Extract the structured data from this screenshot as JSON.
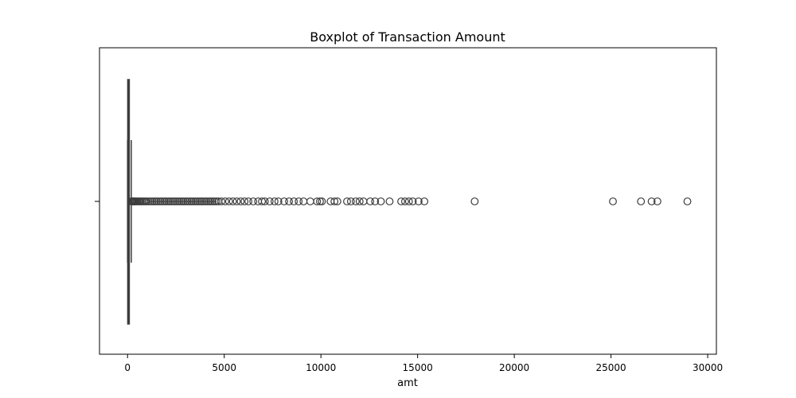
{
  "chart_data": {
    "type": "boxplot",
    "title": "Boxplot of Transaction Amount",
    "xlabel": "amt",
    "ylabel": "",
    "xlim": [
      -1450,
      30450
    ],
    "xticks": [
      0,
      5000,
      10000,
      15000,
      20000,
      25000,
      30000
    ],
    "xtick_labels": [
      "0",
      "5000",
      "10000",
      "15000",
      "20000",
      "25000",
      "30000"
    ],
    "grid": false,
    "orientation": "horizontal",
    "stats": {
      "whisker_low": 1,
      "q1": 9,
      "median": 47,
      "q3": 83,
      "whisker_high": 194
    },
    "outliers": [
      200,
      230,
      260,
      290,
      320,
      360,
      400,
      450,
      500,
      560,
      620,
      690,
      760,
      840,
      920,
      1000,
      1100,
      1200,
      1300,
      1400,
      1500,
      1600,
      1700,
      1800,
      1900,
      2000,
      2100,
      2200,
      2300,
      2400,
      2500,
      2600,
      2700,
      2800,
      2900,
      3000,
      3100,
      3200,
      3300,
      3400,
      3500,
      3600,
      3700,
      3800,
      3900,
      4000,
      4100,
      4200,
      4300,
      4400,
      4500,
      4600,
      4700,
      4850,
      5050,
      5250,
      5450,
      5650,
      5850,
      6050,
      6250,
      6500,
      6750,
      6950,
      7100,
      7350,
      7600,
      7800,
      8100,
      8350,
      8600,
      8850,
      9100,
      9450,
      9800,
      9950,
      10050,
      10500,
      10700,
      10850,
      11350,
      11550,
      11800,
      12000,
      12200,
      12550,
      12800,
      13100,
      13550,
      14150,
      14350,
      14550,
      14750,
      15050,
      15350,
      17950,
      25100,
      26550,
      27100,
      27400,
      28950
    ],
    "colors": {
      "box_edge": "#3d3d3d",
      "box_fill": "#3d3d3d",
      "outlier_edge": "#3d3d3d",
      "axes_edge": "#000000"
    }
  }
}
